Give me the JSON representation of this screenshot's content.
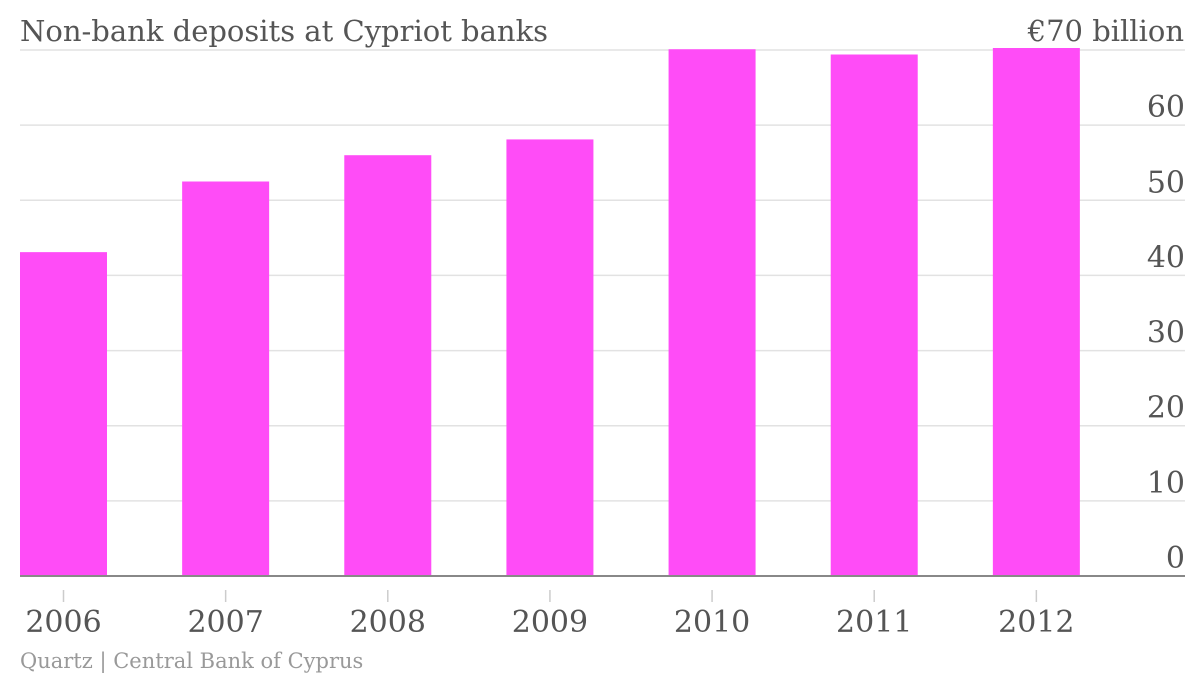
{
  "chart_data": {
    "type": "bar",
    "title": "Non-bank deposits at Cypriot banks",
    "unit_label": "€70 billion",
    "source": "Quartz | Central Bank of Cyprus",
    "categories": [
      "2006",
      "2007",
      "2008",
      "2009",
      "2010",
      "2011",
      "2012"
    ],
    "values": [
      43.1,
      52.5,
      56.0,
      58.1,
      70.1,
      69.4,
      70.3
    ],
    "ylim": [
      0,
      70
    ],
    "yticks": [
      0,
      10,
      20,
      30,
      40,
      50,
      60
    ],
    "grid": true,
    "y_axis_side": "right",
    "bar_color": "#ff4cf7"
  }
}
